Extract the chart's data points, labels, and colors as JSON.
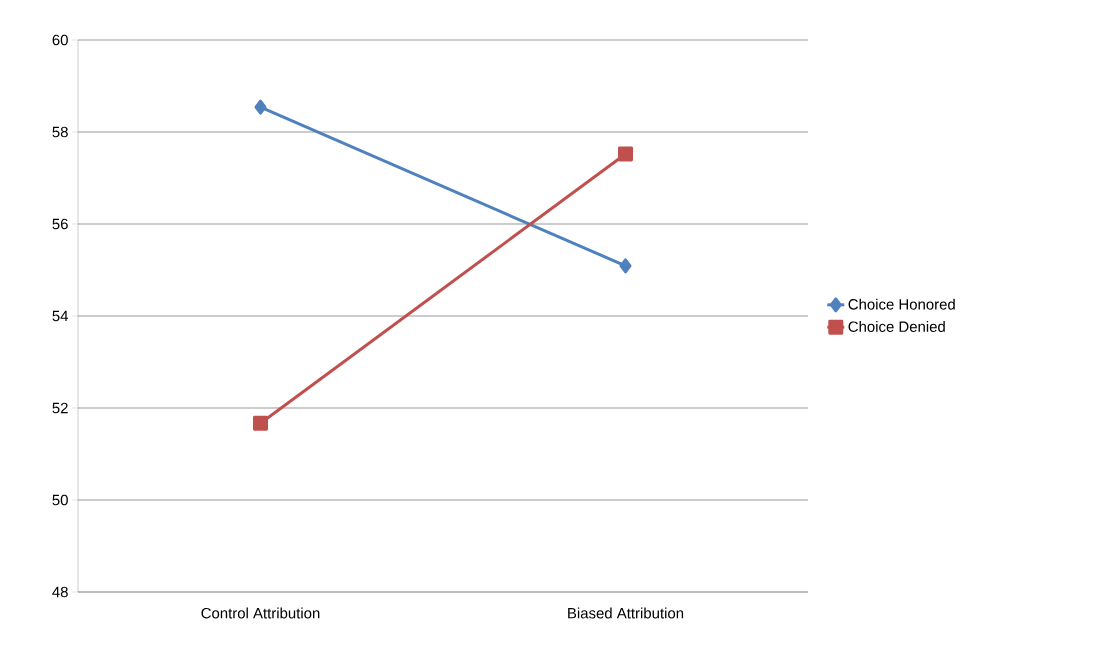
{
  "chart_data": {
    "type": "line",
    "categories": [
      "Control Attribution",
      "Biased Attribution"
    ],
    "series": [
      {
        "name": "Choice Honored",
        "color": "#4f81bd",
        "marker": "diamond",
        "values": [
          58.54,
          55.09
        ]
      },
      {
        "name": "Choice Denied",
        "color": "#c0504d",
        "marker": "square",
        "values": [
          51.67,
          57.52
        ]
      }
    ],
    "ylim": [
      48,
      60
    ],
    "yticks": [
      48,
      50,
      52,
      54,
      56,
      58,
      60
    ],
    "grid": "y",
    "legend": "right"
  }
}
